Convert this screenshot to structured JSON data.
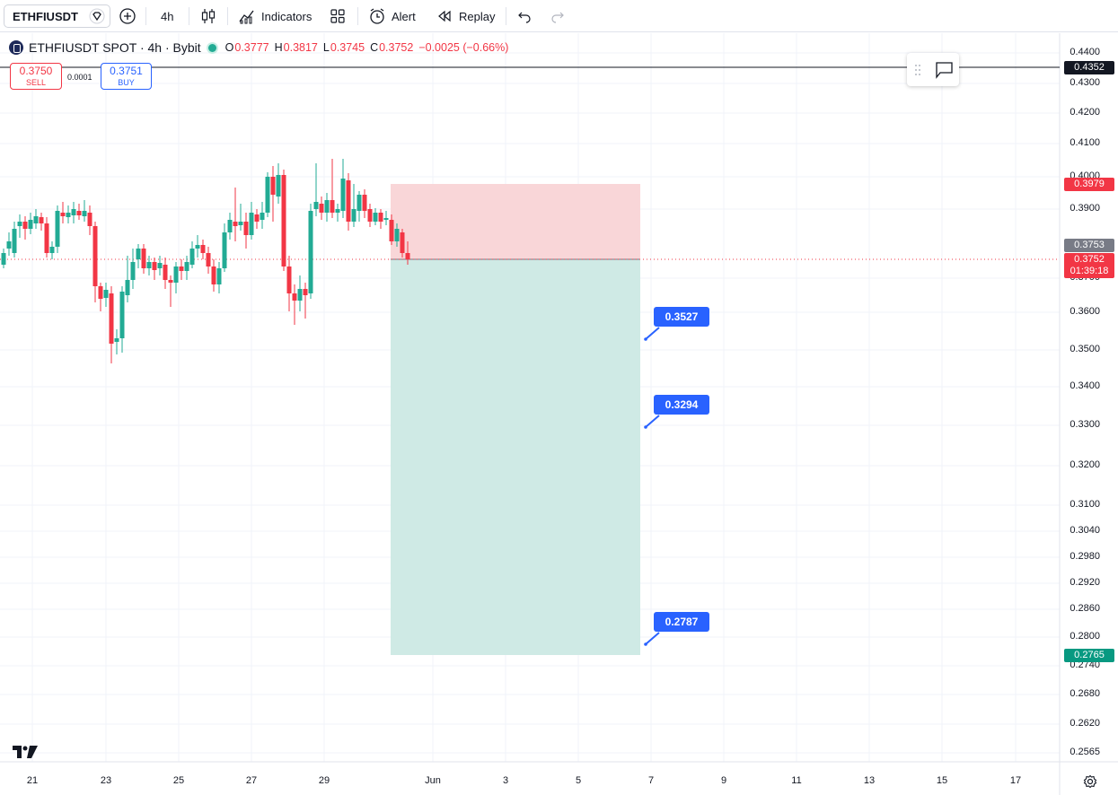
{
  "toolbar": {
    "symbol": "ETHFIUSDT",
    "interval": "4h",
    "indicators_label": "Indicators",
    "alert_label": "Alert",
    "replay_label": "Replay"
  },
  "legend": {
    "title": "ETHFIUSDT SPOT · 4h · Bybit",
    "open_key": "O",
    "open": "0.3777",
    "high_key": "H",
    "high": "0.3817",
    "low_key": "L",
    "low": "0.3745",
    "close_key": "C",
    "close": "0.3752",
    "change": "−0.0025 (−0.66%)"
  },
  "trade": {
    "sell_price": "0.3750",
    "sell_label": "SELL",
    "spread": "0.0001",
    "buy_price": "0.3751",
    "buy_label": "BUY"
  },
  "price_axis": {
    "ticks": [
      "0.4400",
      "0.4300",
      "0.4200",
      "0.4100",
      "0.4000",
      "0.3900",
      "0.3700",
      "0.3600",
      "0.3500",
      "0.3400",
      "0.3300",
      "0.3200",
      "0.3100",
      "0.3040",
      "0.2980",
      "0.2920",
      "0.2860",
      "0.2800",
      "0.2740",
      "0.2680",
      "0.2620",
      "0.2565"
    ],
    "line_price_label": "0.4352",
    "stop_label": "0.3979",
    "prev_close_label": "0.3753",
    "last_price_label": "0.3752",
    "countdown": "01:39:18",
    "target_label": "0.2765"
  },
  "time_axis": {
    "ticks": [
      "21",
      "23",
      "25",
      "27",
      "29",
      "Jun",
      "3",
      "5",
      "7",
      "9",
      "11",
      "13",
      "15",
      "17"
    ]
  },
  "targets": [
    "0.3527",
    "0.3294",
    "0.2787"
  ],
  "colors": {
    "up": "#22ab94",
    "down": "#f23645",
    "accent": "#2962ff",
    "risk_zone": "#f9d6d8",
    "reward_zone": "#cfeae5"
  },
  "icons": [
    "symbol-search-icon",
    "add-compare-icon",
    "candles-icon",
    "indicators-icon",
    "layout-icon",
    "alert-icon",
    "replay-icon",
    "undo-icon",
    "redo-icon",
    "tradingview-logo-icon",
    "settings-icon"
  ]
}
